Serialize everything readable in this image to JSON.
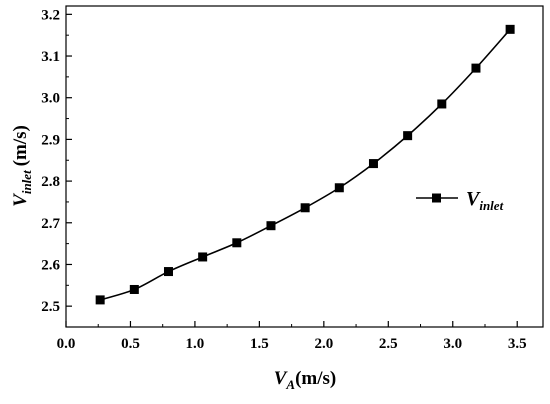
{
  "chart_data": {
    "type": "line",
    "xlabel": {
      "symbol": "V",
      "subscript": "A",
      "unit": "(m/s)"
    },
    "ylabel": {
      "symbol": "V",
      "subscript": "inlet",
      "unit": "(m/s)"
    },
    "xlim": [
      0.0,
      3.7
    ],
    "ylim": [
      2.45,
      3.22
    ],
    "xticks": [
      "0.0",
      "0.5",
      "1.0",
      "1.5",
      "2.0",
      "2.5",
      "3.0",
      "3.5"
    ],
    "yticks": [
      "2.5",
      "2.6",
      "2.7",
      "2.8",
      "2.9",
      "3.0",
      "3.1",
      "3.2"
    ],
    "grid": false,
    "legend_position": "right",
    "series": [
      {
        "name": {
          "symbol": "V",
          "subscript": "inlet"
        },
        "marker": "square",
        "color": "#000000",
        "x": [
          0.265,
          0.53,
          0.795,
          1.06,
          1.325,
          1.59,
          1.855,
          2.12,
          2.385,
          2.65,
          2.915,
          3.18,
          3.445
        ],
        "y": [
          2.515,
          2.54,
          2.583,
          2.618,
          2.652,
          2.693,
          2.736,
          2.784,
          2.842,
          2.909,
          2.985,
          3.071,
          3.164
        ]
      }
    ]
  }
}
